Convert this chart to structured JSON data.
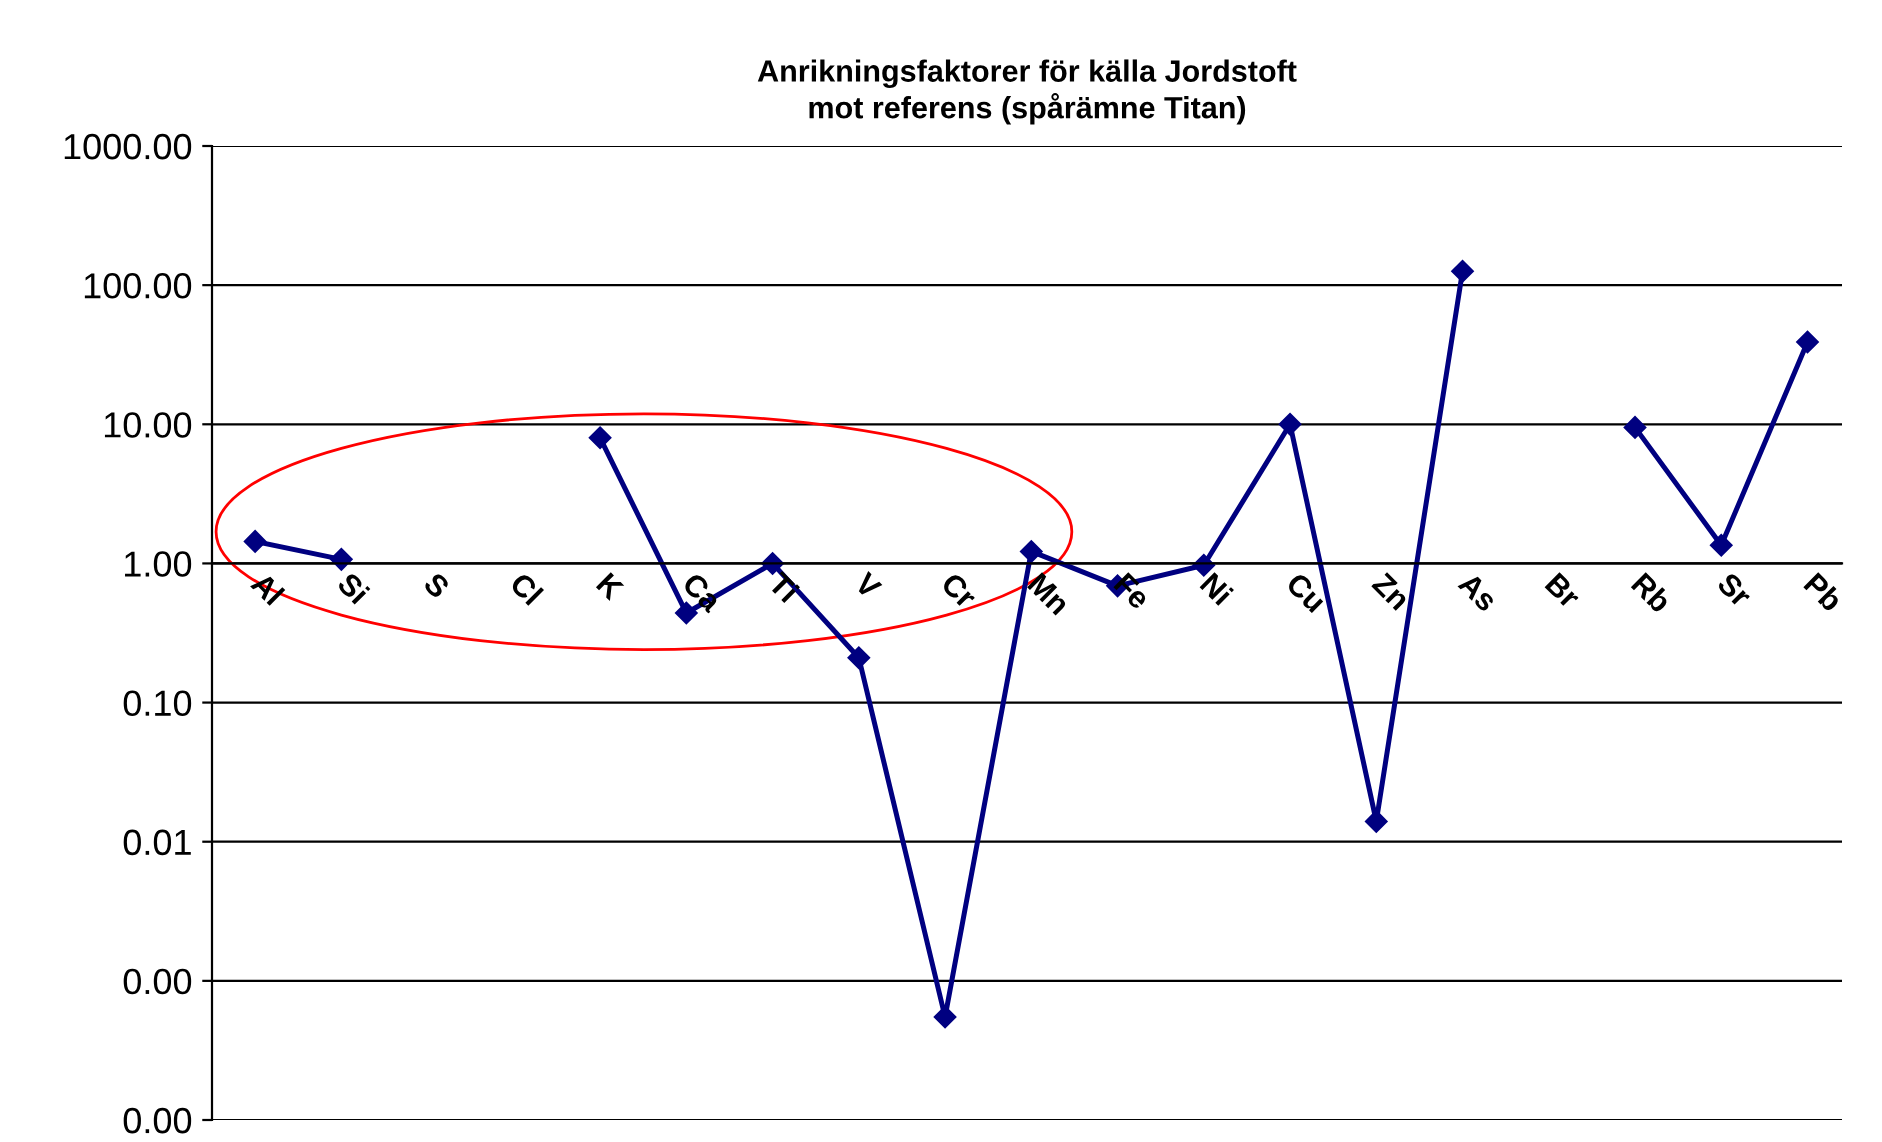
{
  "chart_data": {
    "type": "line",
    "title": "Anrikningsfaktorer för källa Jordstoft\nmot referens (spårämne Titan)",
    "categories": [
      "Al",
      "Si",
      "S",
      "Cl",
      "K",
      "Ca",
      "Ti",
      "V",
      "Cr",
      "Mn",
      "Fe",
      "Ni",
      "Cu",
      "Zn",
      "As",
      "Br",
      "Rb",
      "Sr",
      "Pb"
    ],
    "series": [
      {
        "color": "#000080",
        "values": [
          1.44,
          1.07,
          null,
          null,
          8.0,
          0.44,
          1.0,
          0.21,
          0.00055,
          1.22,
          0.69,
          0.97,
          10,
          0.014,
          126,
          null,
          9.5,
          1.35,
          39
        ]
      }
    ],
    "log": true,
    "ylim": [
      0.0001,
      1000
    ],
    "yticks": [
      {
        "value": 0.0001,
        "label": "0.00"
      },
      {
        "value": 0.001,
        "label": "0.00"
      },
      {
        "value": 0.01,
        "label": "0.01"
      },
      {
        "value": 0.1,
        "label": "0.10"
      },
      {
        "value": 1,
        "label": "1.00"
      },
      {
        "value": 10,
        "label": "10.00"
      },
      {
        "value": 100,
        "label": "100.00"
      },
      {
        "value": 1000,
        "label": "1000.00"
      }
    ],
    "grid": "y",
    "marker": "diamond",
    "line_style": "solid"
  }
}
